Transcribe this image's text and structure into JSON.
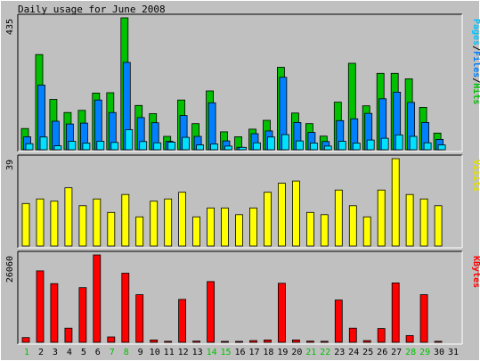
{
  "chart_data": {
    "type": "bar",
    "title": "Daily usage for June 2008",
    "categories": [
      "1",
      "2",
      "3",
      "4",
      "5",
      "6",
      "7",
      "8",
      "9",
      "10",
      "11",
      "12",
      "13",
      "14",
      "15",
      "16",
      "17",
      "18",
      "19",
      "20",
      "21",
      "22",
      "23",
      "24",
      "25",
      "26",
      "27",
      "28",
      "29",
      "30",
      "31"
    ],
    "weekend_days": [
      "1",
      "7",
      "8",
      "14",
      "15",
      "21",
      "22",
      "28",
      "29"
    ],
    "colors": {
      "background": "#c0c0c0",
      "plot": "#c0c0c0",
      "hits": "#00c000",
      "files": "#0080ff",
      "pages": "#00e0ff",
      "visits": "#ffff00",
      "kbytes": "#ff0000",
      "weekday_label": "#000000",
      "weekend_label": "#00c000",
      "right_sep": "#000000"
    },
    "panels": [
      {
        "id": "hits-panel",
        "ymax_label": "435",
        "ymax": 435,
        "right_label_parts": [
          {
            "text": "Pages",
            "color": "#00c0ff"
          },
          {
            "text": "/",
            "color": "#000000"
          },
          {
            "text": "Files",
            "color": "#0080ff"
          },
          {
            "text": "/",
            "color": "#000000"
          },
          {
            "text": "Hits",
            "color": "#00c000"
          }
        ],
        "series": [
          {
            "name": "Hits",
            "color": "#00c000",
            "values": [
              70,
              314,
              166,
              123,
              130,
              187,
              188,
              435,
              146,
              119,
              44,
              164,
              86,
              194,
              59,
              43,
              68,
              97,
              272,
              121,
              86,
              45,
              157,
              285,
              145,
              252,
              252,
              234,
              140,
              55,
              0
            ]
          },
          {
            "name": "Files",
            "color": "#0080ff",
            "values": [
              43,
              213,
              94,
              85,
              88,
              164,
              123,
              288,
              106,
              89,
              28,
              113,
              44,
              155,
              29,
              8,
              53,
              62,
              239,
              90,
              57,
              27,
              96,
              102,
              120,
              168,
              190,
              156,
              90,
              34,
              0
            ]
          },
          {
            "name": "Pages",
            "color": "#00e0ff",
            "values": [
              20,
              42,
              13,
              28,
              22,
              28,
              24,
              66,
              27,
              23,
              25,
              41,
              16,
              19,
              12,
              8,
              23,
              42,
              50,
              29,
              22,
              12,
              28,
              22,
              32,
              38,
              49,
              44,
              23,
              16,
              0
            ]
          }
        ]
      },
      {
        "id": "visits-panel",
        "ymax_label": "39",
        "ymax": 39,
        "right_label_parts": [
          {
            "text": "Visits",
            "color": "#e0e000"
          }
        ],
        "series": [
          {
            "name": "Visits",
            "color": "#ffff00",
            "values": [
              19,
              21,
              20,
              26,
              18,
              21,
              15,
              23,
              13,
              20,
              21,
              24,
              13,
              17,
              17,
              14,
              17,
              24,
              28,
              29,
              15,
              14,
              25,
              18,
              13,
              25,
              39,
              23,
              21,
              18,
              0
            ]
          }
        ]
      },
      {
        "id": "kbytes-panel",
        "ymax_label": "26060",
        "ymax": 26060,
        "right_label_parts": [
          {
            "text": "KBytes",
            "color": "#ff0000"
          }
        ],
        "series": [
          {
            "name": "KBytes",
            "color": "#ff0000",
            "values": [
              1400,
              21300,
              17500,
              4200,
              16300,
              26060,
              1600,
              20600,
              14200,
              700,
              300,
              12800,
              350,
              18100,
              200,
              250,
              500,
              700,
              17600,
              700,
              350,
              300,
              12600,
              4200,
              500,
              4100,
              17700,
              2000,
              14200,
              300,
              0
            ]
          }
        ]
      }
    ]
  }
}
